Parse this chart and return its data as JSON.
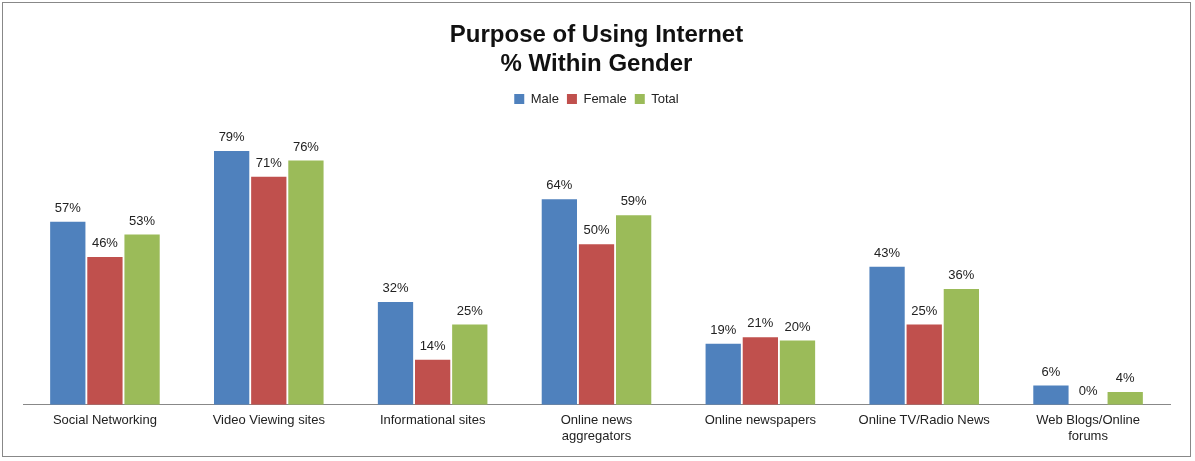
{
  "chart_data": {
    "type": "bar",
    "title": "Purpose of Using Internet\n% Within Gender",
    "categories": [
      "Social Networking",
      "Video Viewing sites",
      "Informational sites",
      "Online news aggregators",
      "Online newspapers",
      "Online TV/Radio News",
      "Web Blogs/Online forums"
    ],
    "series": [
      {
        "name": "Male",
        "color": "#4f81bd",
        "values": [
          57,
          79,
          32,
          64,
          19,
          43,
          6
        ],
        "value_labels": [
          "57%",
          "79%",
          "32%",
          "64%",
          "19%",
          "43%",
          "6%"
        ]
      },
      {
        "name": "Female",
        "color": "#c0504d",
        "values": [
          46,
          71,
          14,
          50,
          21,
          25,
          0
        ],
        "value_labels": [
          "46%",
          "71%",
          "14%",
          "50%",
          "21%",
          "25%",
          "0%"
        ]
      },
      {
        "name": "Total",
        "color": "#9bbb59",
        "values": [
          53,
          76,
          25,
          59,
          20,
          36,
          4
        ],
        "value_labels": [
          "53%",
          "76%",
          "25%",
          "59%",
          "20%",
          "36%",
          "4%"
        ]
      }
    ],
    "legend": "top",
    "grid": false
  }
}
